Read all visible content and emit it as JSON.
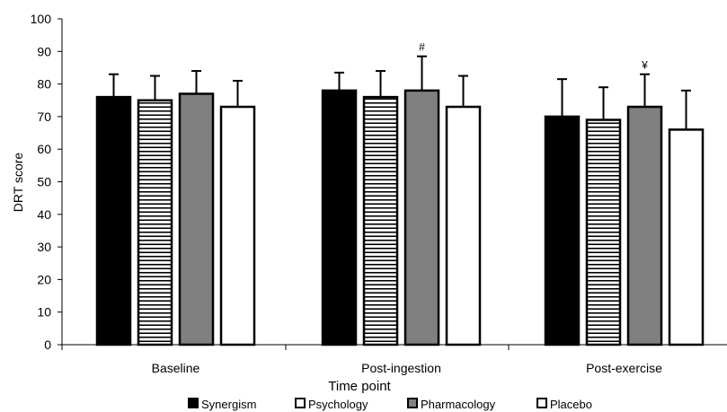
{
  "chart_data": {
    "type": "bar",
    "xlabel": "Time point",
    "ylabel": "DRT score",
    "ylim": [
      0,
      100
    ],
    "yticks": [
      0,
      10,
      20,
      30,
      40,
      50,
      60,
      70,
      80,
      90,
      100
    ],
    "categories": [
      "Baseline",
      "Post-ingestion",
      "Post-exercise"
    ],
    "series": [
      {
        "name": "Synergism",
        "fill": "solid",
        "color": "#000000",
        "values": [
          76,
          78,
          70
        ],
        "errors": [
          7,
          5.5,
          11.5
        ]
      },
      {
        "name": "Psychology",
        "fill": "horizontal-stripes",
        "color": "#000000",
        "values": [
          75,
          76,
          69
        ],
        "errors": [
          7.5,
          8,
          10
        ]
      },
      {
        "name": "Pharmacology",
        "fill": "gray",
        "color": "#808080",
        "values": [
          77,
          78,
          73
        ],
        "errors": [
          7,
          10.5,
          10
        ]
      },
      {
        "name": "Placebo",
        "fill": "white",
        "color": "#ffffff",
        "values": [
          73,
          73,
          66
        ],
        "errors": [
          8,
          9.5,
          12
        ]
      }
    ],
    "annotations": [
      {
        "text": "#",
        "category": "Post-ingestion",
        "series": "Pharmacology"
      },
      {
        "text": "¥",
        "category": "Post-exercise",
        "series": "Pharmacology"
      }
    ],
    "legend_position": "bottom",
    "grid": false
  }
}
